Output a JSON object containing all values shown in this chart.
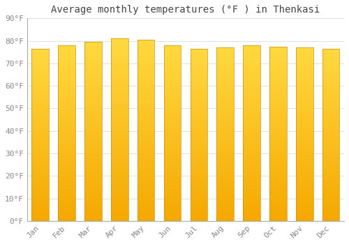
{
  "title": "Average monthly temperatures (°F ) in Thenkasi",
  "months": [
    "Jan",
    "Feb",
    "Mar",
    "Apr",
    "May",
    "Jun",
    "Jul",
    "Aug",
    "Sep",
    "Oct",
    "Nov",
    "Dec"
  ],
  "values": [
    76.5,
    78.0,
    79.5,
    81.0,
    80.5,
    78.0,
    76.5,
    77.0,
    78.0,
    77.5,
    77.0,
    76.5
  ],
  "ylim": [
    0,
    90
  ],
  "yticks": [
    0,
    10,
    20,
    30,
    40,
    50,
    60,
    70,
    80,
    90
  ],
  "bar_color_bottom": "#F5A800",
  "bar_color_top": "#FFD940",
  "bar_border_color": "#C8920A",
  "background_color": "#FFFFFF",
  "grid_color": "#E0E0E0",
  "text_color": "#888888",
  "title_color": "#444444",
  "title_fontsize": 10,
  "tick_fontsize": 8,
  "bar_width": 0.65
}
